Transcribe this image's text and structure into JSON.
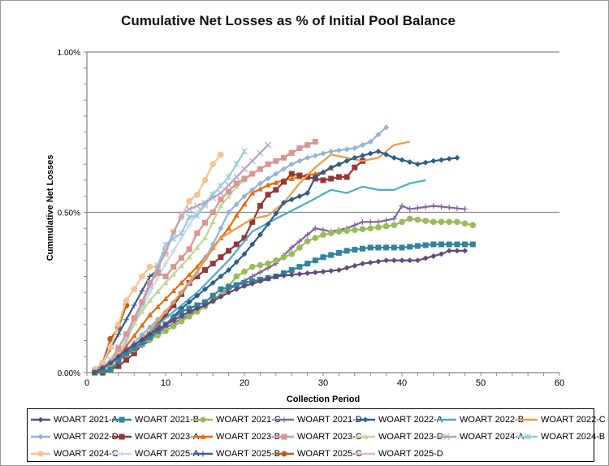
{
  "chart_data": {
    "type": "line",
    "title": "Cumulative Net Losses as % of Initial Pool Balance",
    "xlabel": "Collection Period",
    "ylabel": "Cummulative Net Losses",
    "xlim": [
      0,
      60
    ],
    "ylim": [
      0,
      1.0
    ],
    "x_ticks": [
      "0",
      "10",
      "20",
      "30",
      "40",
      "50",
      "60"
    ],
    "y_ticks": [
      "0.00%",
      "0.50%",
      "1.00%"
    ],
    "grid": "horizontal at 0.50% and 1.00%",
    "legend_position": "bottom",
    "series": [
      {
        "name": "WOART 2021-A",
        "color": "#604a7b",
        "marker": "diamond",
        "points": [
          [
            1,
            0
          ],
          [
            3,
            0.03
          ],
          [
            5,
            0.07
          ],
          [
            8,
            0.12
          ],
          [
            10,
            0.15
          ],
          [
            13,
            0.19
          ],
          [
            15,
            0.21
          ],
          [
            18,
            0.25
          ],
          [
            20,
            0.27
          ],
          [
            24,
            0.3
          ],
          [
            28,
            0.31
          ],
          [
            32,
            0.32
          ],
          [
            35,
            0.34
          ],
          [
            38,
            0.35
          ],
          [
            42,
            0.35
          ],
          [
            45,
            0.37
          ],
          [
            46,
            0.38
          ],
          [
            48,
            0.38
          ]
        ]
      },
      {
        "name": "WOART 2021-B",
        "color": "#31859c",
        "marker": "square",
        "points": [
          [
            1,
            0
          ],
          [
            3,
            0.01
          ],
          [
            5,
            0.06
          ],
          [
            8,
            0.11
          ],
          [
            10,
            0.15
          ],
          [
            12,
            0.19
          ],
          [
            14,
            0.21
          ],
          [
            15,
            0.22
          ],
          [
            17,
            0.26
          ],
          [
            20,
            0.28
          ],
          [
            24,
            0.3
          ],
          [
            27,
            0.33
          ],
          [
            30,
            0.36
          ],
          [
            33,
            0.38
          ],
          [
            36,
            0.39
          ],
          [
            40,
            0.39
          ],
          [
            44,
            0.4
          ],
          [
            47,
            0.4
          ],
          [
            49,
            0.4
          ]
        ]
      },
      {
        "name": "WOART 2021-C",
        "color": "#9bbb59",
        "marker": "circle",
        "points": [
          [
            1,
            0
          ],
          [
            4,
            0.04
          ],
          [
            7,
            0.09
          ],
          [
            10,
            0.13
          ],
          [
            14,
            0.19
          ],
          [
            17,
            0.24
          ],
          [
            19,
            0.3
          ],
          [
            21,
            0.33
          ],
          [
            23,
            0.34
          ],
          [
            26,
            0.37
          ],
          [
            28,
            0.41
          ],
          [
            30,
            0.43
          ],
          [
            32,
            0.44
          ],
          [
            36,
            0.45
          ],
          [
            39,
            0.46
          ],
          [
            41,
            0.48
          ],
          [
            44,
            0.47
          ],
          [
            47,
            0.47
          ],
          [
            49,
            0.46
          ]
        ]
      },
      {
        "name": "WOART 2021-D",
        "color": "#8064a2",
        "marker": "plus",
        "points": [
          [
            1,
            0
          ],
          [
            5,
            0.06
          ],
          [
            10,
            0.14
          ],
          [
            15,
            0.21
          ],
          [
            18,
            0.26
          ],
          [
            21,
            0.3
          ],
          [
            24,
            0.34
          ],
          [
            26,
            0.39
          ],
          [
            29,
            0.45
          ],
          [
            31,
            0.44
          ],
          [
            33,
            0.45
          ],
          [
            35,
            0.47
          ],
          [
            37,
            0.47
          ],
          [
            39,
            0.48
          ],
          [
            40,
            0.52
          ],
          [
            41,
            0.51
          ],
          [
            44,
            0.52
          ],
          [
            48,
            0.51
          ]
        ]
      },
      {
        "name": "WOART 2022-A",
        "color": "#2c5d8f",
        "marker": "diamond",
        "points": [
          [
            1,
            0
          ],
          [
            4,
            0.04
          ],
          [
            8,
            0.1
          ],
          [
            12,
            0.2
          ],
          [
            15,
            0.26
          ],
          [
            18,
            0.32
          ],
          [
            20,
            0.37
          ],
          [
            22,
            0.43
          ],
          [
            25,
            0.53
          ],
          [
            27,
            0.55
          ],
          [
            28,
            0.56
          ],
          [
            29,
            0.61
          ],
          [
            31,
            0.64
          ],
          [
            34,
            0.67
          ],
          [
            37,
            0.69
          ],
          [
            39,
            0.67
          ],
          [
            42,
            0.65
          ],
          [
            44,
            0.66
          ],
          [
            47,
            0.67
          ]
        ]
      },
      {
        "name": "WOART 2022-B",
        "color": "#4bacc6",
        "marker": "none",
        "points": [
          [
            1,
            0
          ],
          [
            5,
            0.06
          ],
          [
            10,
            0.17
          ],
          [
            14,
            0.25
          ],
          [
            18,
            0.35
          ],
          [
            21,
            0.44
          ],
          [
            24,
            0.48
          ],
          [
            28,
            0.53
          ],
          [
            31,
            0.57
          ],
          [
            33,
            0.56
          ],
          [
            35,
            0.58
          ],
          [
            37,
            0.57
          ],
          [
            39,
            0.57
          ],
          [
            41,
            0.59
          ],
          [
            43,
            0.6
          ]
        ]
      },
      {
        "name": "WOART 2022-C",
        "color": "#f79646",
        "marker": "none",
        "points": [
          [
            1,
            0
          ],
          [
            4,
            0.04
          ],
          [
            8,
            0.13
          ],
          [
            12,
            0.25
          ],
          [
            15,
            0.35
          ],
          [
            17,
            0.42
          ],
          [
            19,
            0.45
          ],
          [
            21,
            0.48
          ],
          [
            23,
            0.49
          ],
          [
            25,
            0.53
          ],
          [
            27,
            0.59
          ],
          [
            29,
            0.64
          ],
          [
            31,
            0.68
          ],
          [
            33,
            0.67
          ],
          [
            35,
            0.66
          ],
          [
            37,
            0.67
          ],
          [
            39,
            0.71
          ],
          [
            41,
            0.72
          ]
        ]
      },
      {
        "name": "WOART 2022-D",
        "color": "#95b3d7",
        "marker": "diamond",
        "points": [
          [
            1,
            0
          ],
          [
            5,
            0.07
          ],
          [
            10,
            0.19
          ],
          [
            14,
            0.31
          ],
          [
            16,
            0.4
          ],
          [
            18,
            0.5
          ],
          [
            20,
            0.55
          ],
          [
            22,
            0.59
          ],
          [
            24,
            0.62
          ],
          [
            26,
            0.65
          ],
          [
            28,
            0.67
          ],
          [
            31,
            0.69
          ],
          [
            34,
            0.7
          ],
          [
            36,
            0.72
          ],
          [
            38,
            0.765
          ]
        ]
      },
      {
        "name": "WOART 2023-A",
        "color": "#953735",
        "marker": "square",
        "points": [
          [
            1,
            0
          ],
          [
            2,
            0
          ],
          [
            4,
            0.02
          ],
          [
            6,
            0.06
          ],
          [
            9,
            0.15
          ],
          [
            11,
            0.21
          ],
          [
            13,
            0.28
          ],
          [
            15,
            0.32
          ],
          [
            17,
            0.36
          ],
          [
            19,
            0.4
          ],
          [
            20,
            0.42
          ],
          [
            21,
            0.47
          ],
          [
            22,
            0.52
          ],
          [
            23,
            0.555
          ],
          [
            24,
            0.57
          ],
          [
            26,
            0.62
          ],
          [
            28,
            0.61
          ],
          [
            30,
            0.6
          ],
          [
            32,
            0.61
          ],
          [
            33,
            0.61
          ],
          [
            34,
            0.64
          ],
          [
            35,
            0.66
          ]
        ]
      },
      {
        "name": "WOART 2023-B",
        "color": "#e46c0a",
        "marker": "triangle",
        "points": [
          [
            1,
            0
          ],
          [
            4,
            0.05
          ],
          [
            8,
            0.18
          ],
          [
            10,
            0.23
          ],
          [
            12,
            0.28
          ],
          [
            14,
            0.33
          ],
          [
            16,
            0.39
          ],
          [
            18,
            0.45
          ],
          [
            19,
            0.49
          ],
          [
            21,
            0.56
          ],
          [
            23,
            0.585
          ],
          [
            25,
            0.6
          ],
          [
            27,
            0.61
          ],
          [
            30,
            0.625
          ],
          [
            32,
            0.65
          ]
        ]
      },
      {
        "name": "WOART 2023-C",
        "color": "#d99694",
        "marker": "square",
        "points": [
          [
            1,
            0
          ],
          [
            3,
            0.03
          ],
          [
            5,
            0.12
          ],
          [
            7,
            0.22
          ],
          [
            8,
            0.28
          ],
          [
            9,
            0.31
          ],
          [
            10,
            0.3
          ],
          [
            11,
            0.33
          ],
          [
            13,
            0.385
          ],
          [
            14,
            0.435
          ],
          [
            16,
            0.5
          ],
          [
            17,
            0.54
          ],
          [
            19,
            0.59
          ],
          [
            21,
            0.62
          ],
          [
            23,
            0.65
          ],
          [
            25,
            0.67
          ],
          [
            27,
            0.7
          ],
          [
            29,
            0.72
          ]
        ]
      },
      {
        "name": "WOART 2023-D",
        "color": "#c3d69b",
        "marker": "triangle",
        "points": [
          [
            1,
            0
          ],
          [
            3,
            0.04
          ],
          [
            5,
            0.12
          ],
          [
            8,
            0.225
          ],
          [
            10,
            0.28
          ],
          [
            13,
            0.36
          ],
          [
            15,
            0.42
          ],
          [
            17,
            0.52
          ],
          [
            19,
            0.58
          ],
          [
            21,
            0.62
          ],
          [
            23,
            0.65
          ],
          [
            25,
            0.67
          ],
          [
            26,
            0.69
          ]
        ]
      },
      {
        "name": "WOART 2024-A",
        "color": "#b3a2c7",
        "marker": "x",
        "points": [
          [
            1,
            0
          ],
          [
            3,
            0.04
          ],
          [
            5,
            0.12
          ],
          [
            8,
            0.27
          ],
          [
            10,
            0.38
          ],
          [
            12,
            0.49
          ],
          [
            13,
            0.51
          ],
          [
            15,
            0.53
          ],
          [
            17,
            0.56
          ],
          [
            19,
            0.61
          ],
          [
            21,
            0.66
          ],
          [
            23,
            0.71
          ]
        ]
      },
      {
        "name": "WOART 2024-B",
        "color": "#93cddd",
        "marker": "asterisk",
        "points": [
          [
            1,
            0
          ],
          [
            3,
            0.02
          ],
          [
            5,
            0.1
          ],
          [
            8,
            0.27
          ],
          [
            10,
            0.4
          ],
          [
            12,
            0.435
          ],
          [
            13,
            0.485
          ],
          [
            14,
            0.49
          ],
          [
            16,
            0.555
          ],
          [
            18,
            0.61
          ],
          [
            19,
            0.65
          ],
          [
            20,
            0.69
          ]
        ]
      },
      {
        "name": "WOART 2024-C",
        "color": "#fac090",
        "marker": "circle",
        "points": [
          [
            1,
            0.01
          ],
          [
            2,
            0.03
          ],
          [
            3,
            0.08
          ],
          [
            4,
            0.15
          ],
          [
            5,
            0.225
          ],
          [
            6,
            0.26
          ],
          [
            7,
            0.3
          ],
          [
            8,
            0.33
          ],
          [
            9,
            0.33
          ],
          [
            10,
            0.37
          ],
          [
            11,
            0.44
          ],
          [
            12,
            0.485
          ],
          [
            13,
            0.535
          ],
          [
            14,
            0.555
          ],
          [
            15,
            0.6
          ],
          [
            16,
            0.65
          ],
          [
            17,
            0.68
          ]
        ]
      },
      {
        "name": "WOART 2025-A",
        "color": "#c6d9f1",
        "marker": "plus",
        "points": [
          [
            1,
            0
          ],
          [
            3,
            0.02
          ],
          [
            5,
            0.1
          ],
          [
            8,
            0.25
          ],
          [
            10,
            0.34
          ],
          [
            12,
            0.42
          ],
          [
            14,
            0.5
          ],
          [
            16,
            0.56
          ]
        ]
      },
      {
        "name": "WOART 2025-B",
        "color": "#376092",
        "marker": "plus",
        "points": [
          [
            1,
            0
          ],
          [
            2,
            0.03
          ],
          [
            4,
            0.12
          ],
          [
            6,
            0.21
          ],
          [
            8,
            0.3
          ],
          [
            9,
            0.32
          ]
        ]
      },
      {
        "name": "WOART 2025-C",
        "color": "#b65f1c",
        "marker": "circle",
        "points": [
          [
            1,
            0.01
          ],
          [
            2,
            0.03
          ],
          [
            3,
            0.105
          ],
          [
            4,
            0.14
          ],
          [
            5,
            0.21
          ]
        ]
      },
      {
        "name": "WOART 2025-D",
        "color": "#e6b9b8",
        "marker": "none",
        "points": [
          [
            1,
            0
          ],
          [
            2,
            0.01
          ],
          [
            3,
            0.03
          ]
        ]
      }
    ]
  }
}
